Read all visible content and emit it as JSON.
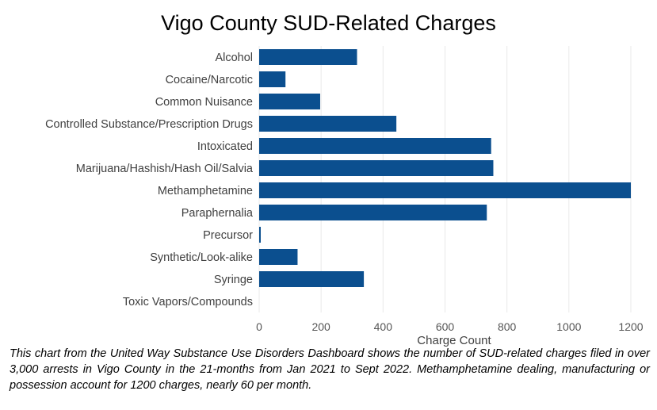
{
  "chart_data": {
    "type": "bar",
    "orientation": "horizontal",
    "title": "Vigo County SUD-Related Charges",
    "xlabel": "Charge Count",
    "ylabel": "",
    "xlim": [
      0,
      1200
    ],
    "xticks": [
      0,
      200,
      400,
      600,
      800,
      1000,
      1200
    ],
    "grid": "vertical",
    "legend": "none",
    "bar_color": "#0b4f8f",
    "categories": [
      "Alcohol",
      "Cocaine/Narcotic",
      "Common Nuisance",
      "Controlled Substance/Prescription Drugs",
      "Intoxicated",
      "Marijuana/Hashish/Hash Oil/Salvia",
      "Methamphetamine",
      "Paraphernalia",
      "Precursor",
      "Synthetic/Look-alike",
      "Syringe",
      "Toxic Vapors/Compounds"
    ],
    "values": [
      316,
      85,
      197,
      443,
      749,
      756,
      1200,
      735,
      3,
      124,
      338,
      0
    ]
  },
  "caption": "This chart from the United Way Substance Use Disorders Dashboard shows the number of SUD-related charges filed in over 3,000 arrests in Vigo County in the 21-months from Jan 2021 to Sept 2022. Methamphetamine dealing, manufacturing or possession account for 1200 charges, nearly 60 per month."
}
